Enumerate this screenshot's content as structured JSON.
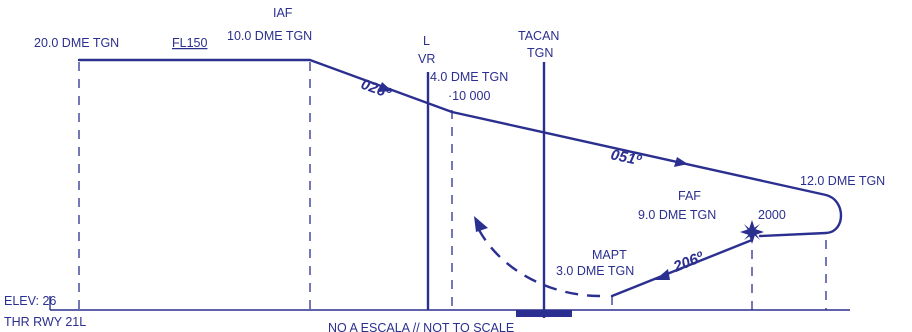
{
  "colors": {
    "ink": "#2b2f8f",
    "background": "#ffffff"
  },
  "fixes": {
    "start": {
      "distance": "20.0 DME TGN",
      "altitude": "FL150"
    },
    "iaf": {
      "name": "IAF",
      "distance": "10.0 DME TGN"
    },
    "lvr": {
      "line1": "L",
      "line2": "VR"
    },
    "dme4": {
      "distance": "4.0 DME TGN",
      "altitude": "·10 000"
    },
    "tacan": {
      "line1": "TACAN",
      "line2": "TGN"
    },
    "turn": {
      "distance": "12.0 DME TGN"
    },
    "faf": {
      "name": "FAF",
      "distance": "9.0 DME TGN",
      "altitude": "2000"
    },
    "mapt": {
      "name": "MAPT",
      "distance": "3.0 DME TGN"
    }
  },
  "courses": {
    "c1": "026º",
    "c2": "051º",
    "c3": "206º"
  },
  "airport": {
    "elevation": "ELEV: 26",
    "threshold": "THR RWY 21L"
  },
  "footer": {
    "note": "NO A ESCALA // NOT TO SCALE"
  }
}
